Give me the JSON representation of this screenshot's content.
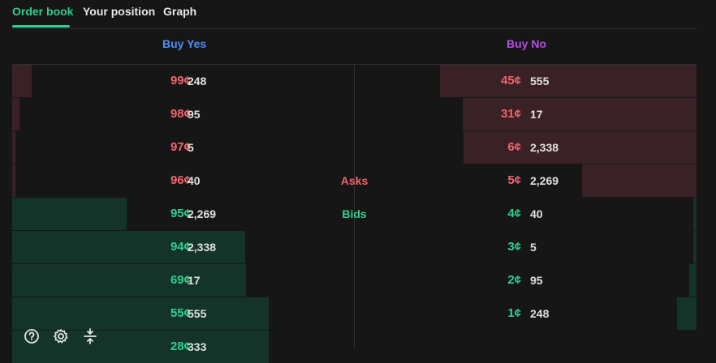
{
  "tabs": [
    {
      "label": "Order book",
      "active": true
    },
    {
      "label": "Your position",
      "active": false
    },
    {
      "label": "Graph",
      "active": false
    }
  ],
  "columns": {
    "yes": "Buy Yes",
    "no": "Buy No"
  },
  "middle_labels": {
    "asks": "Asks",
    "bids": "Bids"
  },
  "buy_yes": {
    "asks": [
      {
        "price": "99¢",
        "qty": "248"
      },
      {
        "price": "98¢",
        "qty": "95"
      },
      {
        "price": "97¢",
        "qty": "5"
      },
      {
        "price": "96¢",
        "qty": "40"
      }
    ],
    "bids": [
      {
        "price": "95¢",
        "qty": "2,269"
      },
      {
        "price": "94¢",
        "qty": "2,338"
      },
      {
        "price": "69¢",
        "qty": "17"
      },
      {
        "price": "55¢",
        "qty": "555"
      },
      {
        "price": "28¢",
        "qty": "333"
      }
    ]
  },
  "buy_no": {
    "asks": [
      {
        "price": "45¢",
        "qty": "555"
      },
      {
        "price": "31¢",
        "qty": "17"
      },
      {
        "price": "6¢",
        "qty": "2,338"
      },
      {
        "price": "5¢",
        "qty": "2,269"
      }
    ],
    "bids": [
      {
        "price": "4¢",
        "qty": "40"
      },
      {
        "price": "3¢",
        "qty": "5"
      },
      {
        "price": "2¢",
        "qty": "95"
      },
      {
        "price": "1¢",
        "qty": "248"
      }
    ]
  },
  "colors": {
    "accent": "#2fd08f",
    "ask": "#f2646f",
    "bid": "#2fd08f",
    "yes_header": "#4f8ef7",
    "no_header": "#b34fe0"
  },
  "toolbar": {
    "help_icon": "help-circle-icon",
    "settings_icon": "gear-icon",
    "compress_icon": "collapse-vertical-icon"
  }
}
